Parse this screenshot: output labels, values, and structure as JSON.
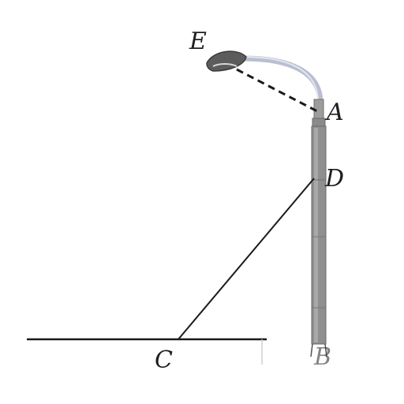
{
  "figure": {
    "description_type": "geometry-streetlamp",
    "points": {
      "E": {
        "label": "E"
      },
      "A": {
        "label": "A"
      },
      "D": {
        "label": "D"
      },
      "C": {
        "label": "C"
      },
      "B": {
        "label": "B"
      }
    },
    "segments": [
      {
        "name": "EA",
        "style": "dashed"
      },
      {
        "name": "CD",
        "style": "solid"
      },
      {
        "name": "ground",
        "style": "solid"
      }
    ],
    "colors": {
      "line": "#1a1a1a",
      "pole": "#8f8f8f",
      "pole_shadow": "#6f6f6f",
      "arm": "#b9bfd1",
      "lamp_head": "#5c5c5c",
      "background": "#ffffff"
    }
  }
}
